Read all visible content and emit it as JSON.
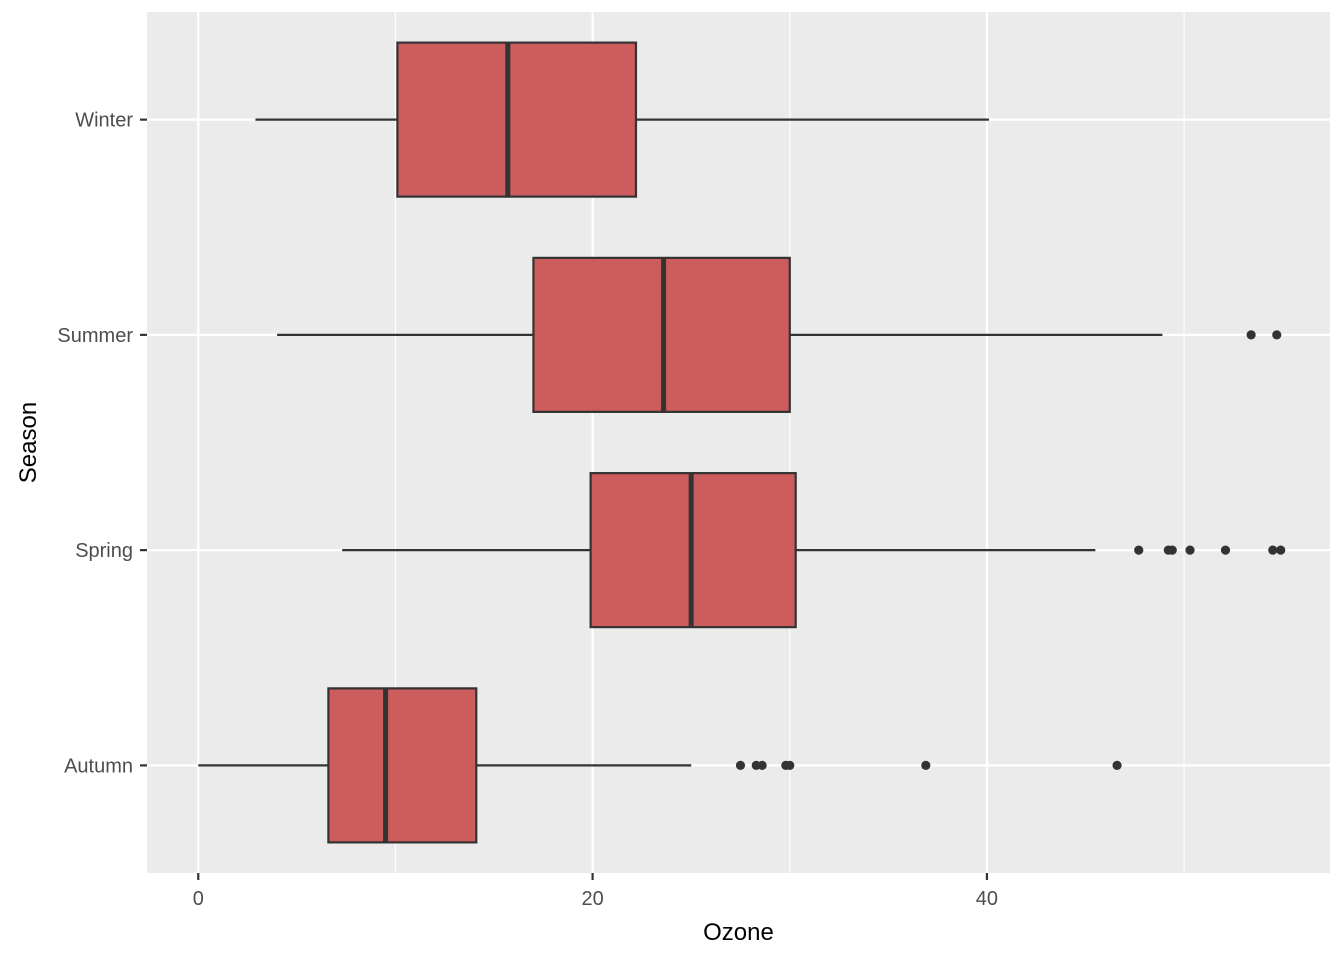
{
  "chart_data": {
    "type": "boxplot",
    "orientation": "horizontal",
    "xlabel": "Ozone",
    "ylabel": "Season",
    "xlim": [
      -2.6,
      57.4
    ],
    "x_ticks": [
      0,
      20,
      40
    ],
    "x_minor_ticks": [
      10,
      30,
      50
    ],
    "categories": [
      "Winter",
      "Summer",
      "Spring",
      "Autumn"
    ],
    "grid": true,
    "panel_background": "#ebebeb",
    "grid_color": "#ffffff",
    "box_fill": "#cd5c5c",
    "line_color": "#333333",
    "series": [
      {
        "category": "Winter",
        "whisker_low": 2.9,
        "q1": 10.1,
        "median": 15.7,
        "q3": 22.2,
        "whisker_high": 40.1,
        "outliers": []
      },
      {
        "category": "Summer",
        "whisker_low": 4.0,
        "q1": 17.0,
        "median": 23.6,
        "q3": 30.0,
        "whisker_high": 48.9,
        "outliers": [
          53.4,
          54.7
        ]
      },
      {
        "category": "Spring",
        "whisker_low": 7.3,
        "q1": 19.9,
        "median": 25.0,
        "q3": 30.3,
        "whisker_high": 45.5,
        "outliers": [
          47.7,
          49.2,
          49.4,
          50.3,
          52.1,
          54.5,
          54.9
        ]
      },
      {
        "category": "Autumn",
        "whisker_low": 0.0,
        "q1": 6.6,
        "median": 9.5,
        "q3": 14.1,
        "whisker_high": 25.0,
        "outliers": [
          27.5,
          28.3,
          28.6,
          29.8,
          30.0,
          36.9,
          46.6
        ]
      }
    ]
  }
}
